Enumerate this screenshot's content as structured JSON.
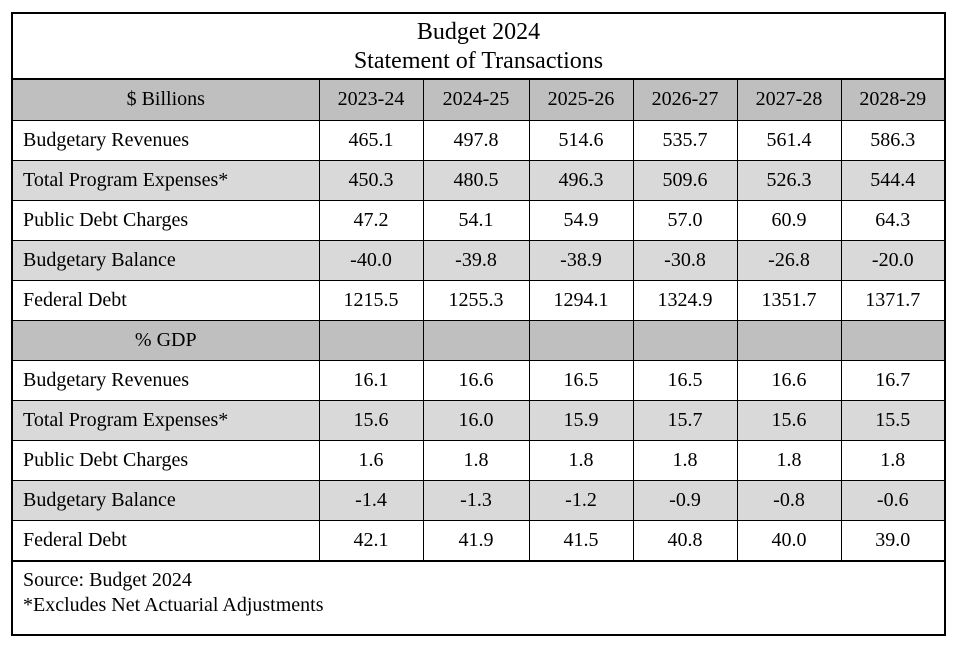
{
  "title": {
    "line1": "Budget 2024",
    "line2": "Statement of Transactions"
  },
  "columns": [
    "2023-24",
    "2024-25",
    "2025-26",
    "2026-27",
    "2027-28",
    "2028-29"
  ],
  "billions": {
    "header": "$ Billions",
    "rows": [
      {
        "label": "Budgetary Revenues",
        "values": [
          "465.1",
          "497.8",
          "514.6",
          "535.7",
          "561.4",
          "586.3"
        ]
      },
      {
        "label": "Total Program Expenses*",
        "values": [
          "450.3",
          "480.5",
          "496.3",
          "509.6",
          "526.3",
          "544.4"
        ]
      },
      {
        "label": "Public Debt Charges",
        "values": [
          "47.2",
          "54.1",
          "54.9",
          "57.0",
          "60.9",
          "64.3"
        ]
      },
      {
        "label": "Budgetary Balance",
        "values": [
          "-40.0",
          "-39.8",
          "-38.9",
          "-30.8",
          "-26.8",
          "-20.0"
        ]
      },
      {
        "label": "Federal Debt",
        "values": [
          "1215.5",
          "1255.3",
          "1294.1",
          "1324.9",
          "1351.7",
          "1371.7"
        ]
      }
    ]
  },
  "gdp": {
    "header": "% GDP",
    "rows": [
      {
        "label": "Budgetary Revenues",
        "values": [
          "16.1",
          "16.6",
          "16.5",
          "16.5",
          "16.6",
          "16.7"
        ]
      },
      {
        "label": "Total Program Expenses*",
        "values": [
          "15.6",
          "16.0",
          "15.9",
          "15.7",
          "15.6",
          "15.5"
        ]
      },
      {
        "label": "Public Debt Charges",
        "values": [
          "1.6",
          "1.8",
          "1.8",
          "1.8",
          "1.8",
          "1.8"
        ]
      },
      {
        "label": "Budgetary Balance",
        "values": [
          "-1.4",
          "-1.3",
          "-1.2",
          "-0.9",
          "-0.8",
          "-0.6"
        ]
      },
      {
        "label": "Federal Debt",
        "values": [
          "42.1",
          "41.9",
          "41.5",
          "40.8",
          "40.0",
          "39.0"
        ]
      }
    ]
  },
  "footer": {
    "source": "Source: Budget 2024",
    "note": "*Excludes Net Actuarial Adjustments"
  },
  "colors": {
    "header_bg": "#bfbfbf",
    "stripe_bg": "#d9d9d9",
    "border": "#000000"
  }
}
